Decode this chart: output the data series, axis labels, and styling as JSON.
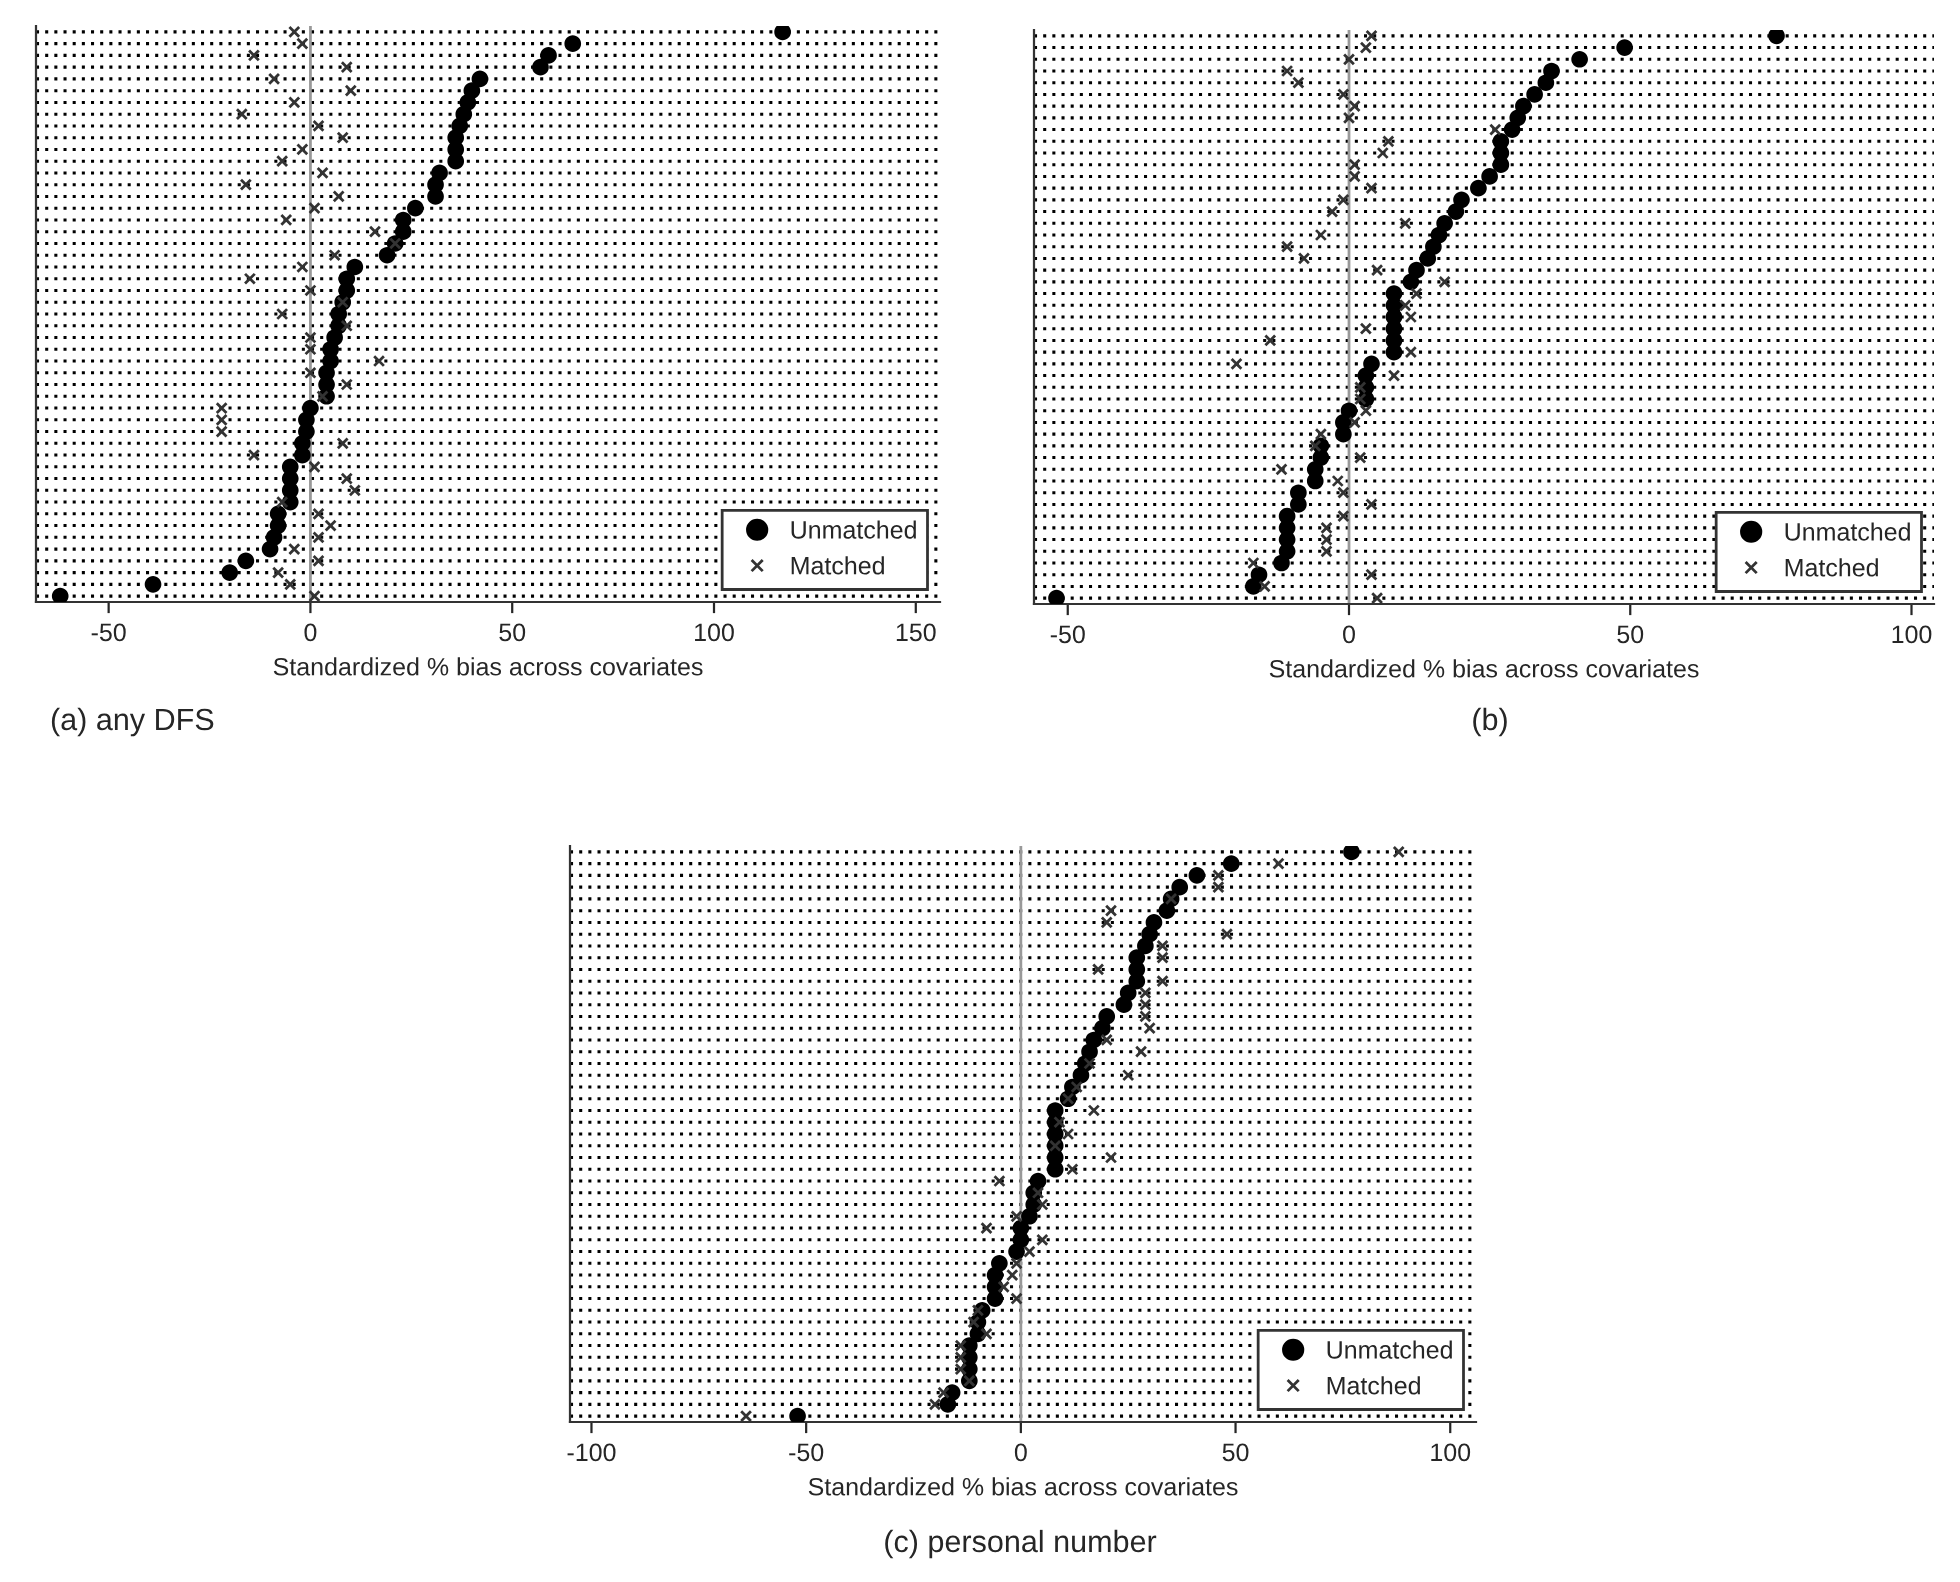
{
  "chart_data": [
    {
      "type": "scatter",
      "orientation": "horizontal",
      "title": "(a) any DFS",
      "xlabel": "Standardized % bias across covariates",
      "categories": [
        null,
        null,
        null,
        null,
        null,
        null,
        null,
        null,
        null,
        null,
        null,
        null,
        null,
        null,
        null,
        null,
        null,
        null,
        null,
        null,
        null,
        null,
        null,
        null,
        null,
        null,
        null,
        null,
        null,
        null,
        null,
        null,
        null,
        null,
        null,
        null,
        null,
        null,
        null,
        null,
        null,
        null,
        null,
        null,
        null,
        null,
        null,
        null,
        null
      ],
      "series": [
        {
          "name": "Unmatched",
          "color": "#000000",
          "marker": "circle",
          "values": [
            117,
            65,
            59,
            57,
            42,
            40,
            39,
            38,
            37,
            36,
            36,
            36,
            32,
            31,
            31,
            26,
            23,
            23,
            21,
            19,
            11,
            9,
            9,
            8,
            7,
            7,
            6,
            5,
            5,
            4,
            4,
            4,
            0,
            -1,
            -1,
            -2,
            -2,
            -5,
            -5,
            -5,
            -5,
            -8,
            -8,
            -9,
            -10,
            -16,
            -20,
            -39,
            -62
          ]
        },
        {
          "name": "Matched",
          "color": "#333333",
          "marker": "cross",
          "values": [
            -4,
            -2,
            -14,
            9,
            -9,
            10,
            -4,
            -17,
            2,
            8,
            -2,
            -7,
            3,
            -16,
            7,
            1,
            -6,
            16,
            21,
            6,
            -2,
            -15,
            0,
            8,
            -7,
            9,
            0,
            0,
            17,
            0,
            9,
            3,
            -22,
            -22,
            -22,
            8,
            -14,
            1,
            9,
            11,
            -7,
            2,
            5,
            2,
            -4,
            2,
            -8,
            -5,
            1
          ]
        }
      ],
      "xlim": [
        -68,
        156
      ],
      "xticks": [
        -50,
        0,
        50,
        100,
        150
      ],
      "tick_labels": "x",
      "grid": "y",
      "legend": "bottom right",
      "ref_lines": [
        {
          "axis": "x",
          "value": 0,
          "color": "#999999"
        }
      ]
    },
    {
      "type": "scatter",
      "orientation": "horizontal",
      "title": "(b)",
      "xlabel": "Standardized % bias across covariates",
      "categories": [
        null,
        null,
        null,
        null,
        null,
        null,
        null,
        null,
        null,
        null,
        null,
        null,
        null,
        null,
        null,
        null,
        null,
        null,
        null,
        null,
        null,
        null,
        null,
        null,
        null,
        null,
        null,
        null,
        null,
        null,
        null,
        null,
        null,
        null,
        null,
        null,
        null,
        null,
        null,
        null,
        null,
        null,
        null,
        null,
        null,
        null,
        null,
        null,
        null
      ],
      "series": [
        {
          "name": "Unmatched",
          "color": "#000000",
          "marker": "circle",
          "values": [
            76,
            49,
            41,
            36,
            35,
            33,
            31,
            30,
            29,
            27,
            27,
            27,
            25,
            23,
            20,
            19,
            17,
            16,
            15,
            14,
            12,
            11,
            8,
            8,
            8,
            8,
            8,
            8,
            4,
            3,
            3,
            3,
            0,
            -1,
            -1,
            -5,
            -5,
            -6,
            -6,
            -9,
            -9,
            -11,
            -11,
            -11,
            -11,
            -12,
            -16,
            -17,
            -52
          ]
        },
        {
          "name": "Matched",
          "color": "#333333",
          "marker": "cross",
          "values": [
            4,
            3,
            0,
            -11,
            -9,
            -1,
            1,
            0,
            26,
            7,
            6,
            1,
            1,
            4,
            -1,
            -3,
            10,
            -5,
            -11,
            -8,
            5,
            17,
            12,
            10,
            11,
            3,
            -14,
            11,
            -20,
            8,
            2,
            2,
            3,
            1,
            -5,
            -6,
            2,
            -12,
            -2,
            -1,
            4,
            -1,
            -4,
            -4,
            -4,
            -17,
            4,
            -15,
            5
          ]
        }
      ],
      "xlim": [
        -56,
        104
      ],
      "xticks": [
        -50,
        0,
        50,
        100
      ],
      "tick_labels": "x",
      "grid": "y",
      "legend": "bottom right",
      "ref_lines": [
        {
          "axis": "x",
          "value": 0,
          "color": "#999999"
        }
      ]
    },
    {
      "type": "scatter",
      "orientation": "horizontal",
      "title": "(c) personal number",
      "xlabel": "Standardized % bias across covariates",
      "categories": [
        null,
        null,
        null,
        null,
        null,
        null,
        null,
        null,
        null,
        null,
        null,
        null,
        null,
        null,
        null,
        null,
        null,
        null,
        null,
        null,
        null,
        null,
        null,
        null,
        null,
        null,
        null,
        null,
        null,
        null,
        null,
        null,
        null,
        null,
        null,
        null,
        null,
        null,
        null,
        null,
        null,
        null,
        null,
        null,
        null,
        null,
        null,
        null,
        null
      ],
      "series": [
        {
          "name": "Unmatched",
          "color": "#000000",
          "marker": "circle",
          "values": [
            77,
            49,
            41,
            37,
            35,
            34,
            31,
            30,
            29,
            27,
            27,
            27,
            25,
            24,
            20,
            19,
            17,
            16,
            15,
            14,
            12,
            11,
            8,
            8,
            8,
            8,
            8,
            8,
            4,
            3,
            3,
            2,
            0,
            0,
            -1,
            -5,
            -6,
            -6,
            -6,
            -9,
            -10,
            -10,
            -12,
            -12,
            -12,
            -12,
            -16,
            -17,
            -52
          ]
        },
        {
          "name": "Matched",
          "color": "#333333",
          "marker": "cross",
          "values": [
            88,
            60,
            46,
            46,
            35,
            21,
            20,
            48,
            33,
            33,
            18,
            33,
            29,
            29,
            29,
            30,
            20,
            28,
            16,
            25,
            13,
            11,
            17,
            9,
            11,
            8,
            21,
            12,
            -5,
            4,
            5,
            -1,
            -8,
            5,
            2,
            -1,
            -2,
            -4,
            -1,
            -10,
            -11,
            -8,
            -14,
            -14,
            -14,
            -12,
            -18,
            -20,
            -64
          ]
        }
      ],
      "xlim": [
        -105,
        106
      ],
      "xticks": [
        -100,
        -50,
        0,
        50,
        100
      ],
      "tick_labels": "x",
      "grid": "y",
      "legend": "bottom right",
      "ref_lines": [
        {
          "axis": "x",
          "value": 0,
          "color": "#999999"
        }
      ]
    }
  ]
}
